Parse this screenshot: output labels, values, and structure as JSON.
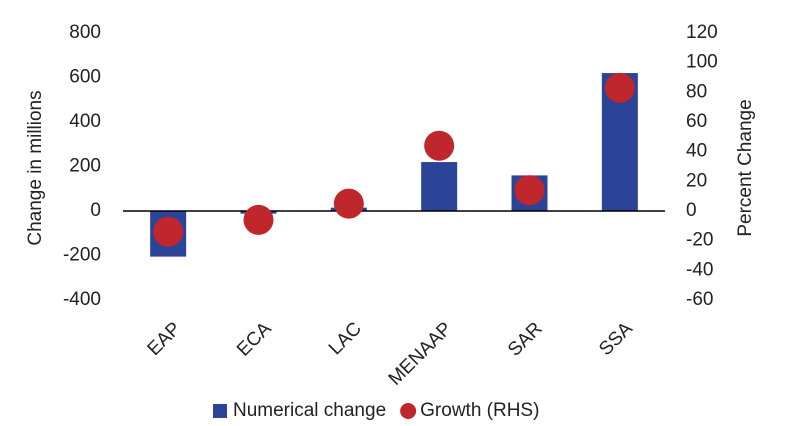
{
  "chart_data": {
    "type": "bar",
    "categories": [
      "EAP",
      "ECA",
      "LAC",
      "MENAAP",
      "SAR",
      "SSA"
    ],
    "series": [
      {
        "name": "Numerical change",
        "type": "bar",
        "color": "#2b4497",
        "values": [
          -205,
          -12,
          15,
          220,
          160,
          620
        ]
      },
      {
        "name": "Growth (RHS)",
        "type": "scatter",
        "axis": "y2",
        "color": "#c0272d",
        "values": [
          -14,
          -6,
          5,
          44,
          14,
          83
        ]
      }
    ],
    "ylabel": "Change in millions",
    "y2label": "Percent Change",
    "ylim": [
      -400,
      800
    ],
    "yticks": [
      -400,
      -200,
      0,
      200,
      400,
      600,
      800
    ],
    "y2lim": [
      -60,
      120
    ],
    "y2ticks": [
      -60,
      -40,
      -20,
      0,
      20,
      40,
      60,
      80,
      100,
      120
    ],
    "grid": false,
    "legend": "bottom"
  }
}
